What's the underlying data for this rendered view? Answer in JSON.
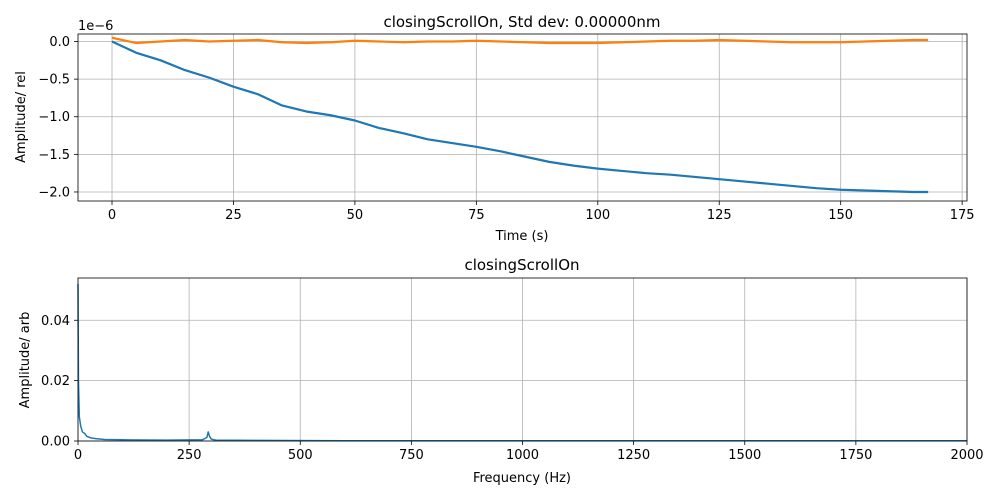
{
  "chart_data": [
    {
      "type": "line",
      "title": "closingScrollOn, Std dev: 0.00000nm",
      "xlabel": "Time (s)",
      "ylabel": "Amplitude/ rel",
      "offset_text": "1e−6",
      "xlim": [
        -7,
        176
      ],
      "ylim": [
        -2.12,
        0.1
      ],
      "xticks": [
        0,
        25,
        50,
        75,
        100,
        125,
        150,
        175
      ],
      "xtick_labels": [
        "0",
        "25",
        "50",
        "75",
        "100",
        "125",
        "150",
        "175"
      ],
      "yticks": [
        0.0,
        -0.5,
        -1.0,
        -1.5,
        -2.0
      ],
      "ytick_labels": [
        "0.0",
        "−0.5",
        "−1.0",
        "−1.5",
        "−2.0"
      ],
      "grid": true,
      "series": [
        {
          "color": "#1f77b4",
          "x": [
            0,
            5,
            10,
            15,
            20,
            25,
            30,
            35,
            40,
            45,
            50,
            55,
            60,
            65,
            70,
            75,
            80,
            85,
            90,
            95,
            100,
            105,
            110,
            115,
            120,
            125,
            130,
            135,
            140,
            145,
            150,
            155,
            160,
            165,
            168
          ],
          "y": [
            0.0,
            -0.15,
            -0.25,
            -0.38,
            -0.48,
            -0.6,
            -0.7,
            -0.85,
            -0.93,
            -0.98,
            -1.05,
            -1.15,
            -1.22,
            -1.3,
            -1.35,
            -1.4,
            -1.46,
            -1.53,
            -1.6,
            -1.65,
            -1.69,
            -1.72,
            -1.75,
            -1.77,
            -1.8,
            -1.83,
            -1.86,
            -1.89,
            -1.92,
            -1.95,
            -1.97,
            -1.98,
            -1.99,
            -2.0,
            -2.0
          ]
        },
        {
          "color": "#ff7f0e",
          "x": [
            0,
            5,
            10,
            15,
            20,
            25,
            30,
            35,
            40,
            45,
            50,
            55,
            60,
            65,
            70,
            75,
            80,
            85,
            90,
            95,
            100,
            105,
            110,
            115,
            120,
            125,
            130,
            135,
            140,
            145,
            150,
            155,
            160,
            165,
            168
          ],
          "y": [
            0.05,
            -0.02,
            0.0,
            0.02,
            0.0,
            0.01,
            0.02,
            -0.01,
            -0.02,
            -0.01,
            0.01,
            0.0,
            -0.01,
            0.0,
            0.0,
            0.01,
            0.0,
            -0.01,
            -0.02,
            -0.02,
            -0.02,
            -0.01,
            0.0,
            0.01,
            0.01,
            0.02,
            0.01,
            0.0,
            -0.01,
            -0.01,
            -0.01,
            0.0,
            0.01,
            0.02,
            0.02
          ]
        }
      ]
    },
    {
      "type": "line",
      "title": "closingScrollOn",
      "xlabel": "Frequency (Hz)",
      "ylabel": "Amplitude/ arb",
      "xlim": [
        0,
        2000
      ],
      "ylim": [
        0,
        0.054
      ],
      "xticks": [
        0,
        250,
        500,
        750,
        1000,
        1250,
        1500,
        1750,
        2000
      ],
      "xtick_labels": [
        "0",
        "250",
        "500",
        "750",
        "1000",
        "1250",
        "1500",
        "1750",
        "2000"
      ],
      "yticks": [
        0.0,
        0.02,
        0.04
      ],
      "ytick_labels": [
        "0.00",
        "0.02",
        "0.04"
      ],
      "grid": true,
      "series": [
        {
          "color": "#1f77b4",
          "x": [
            0,
            1,
            3,
            6,
            10,
            15,
            20,
            30,
            40,
            60,
            100,
            200,
            280,
            290,
            293,
            296,
            300,
            310,
            400,
            600,
            1000,
            1500,
            2000
          ],
          "y": [
            0.052,
            0.02,
            0.008,
            0.005,
            0.003,
            0.0025,
            0.0015,
            0.001,
            0.0008,
            0.0005,
            0.0004,
            0.0003,
            0.0004,
            0.0012,
            0.003,
            0.0015,
            0.0006,
            0.0003,
            0.0002,
            0.0001,
            0.0001,
            0.0001,
            0.0001
          ]
        }
      ]
    }
  ]
}
